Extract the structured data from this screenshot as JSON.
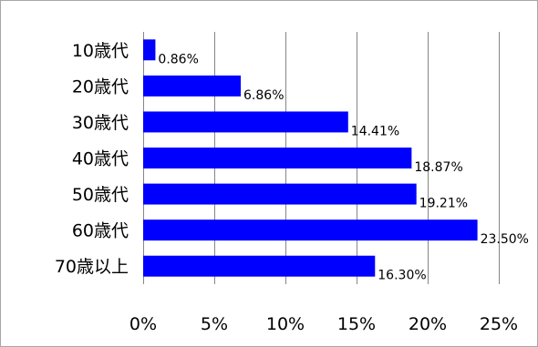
{
  "chart_data": {
    "type": "bar",
    "orientation": "horizontal",
    "categories": [
      "10歳代",
      "20歳代",
      "30歳代",
      "40歳代",
      "50歳代",
      "60歳代",
      "70歳以上"
    ],
    "values": [
      0.86,
      6.86,
      14.41,
      18.87,
      19.21,
      23.5,
      16.3
    ],
    "data_labels": [
      "0.86%",
      "6.86%",
      "14.41%",
      "18.87%",
      "19.21%",
      "23.50%",
      "16.30%"
    ],
    "value_unit": "%",
    "xlim": [
      0,
      25
    ],
    "x_ticks": [
      0,
      5,
      10,
      15,
      20,
      25
    ],
    "x_tick_labels": [
      "0%",
      "5%",
      "10%",
      "15%",
      "20%",
      "25%"
    ],
    "grid": "vertical",
    "legend": "none",
    "bar_color": "#0000FF",
    "grid_color": "#868686"
  }
}
